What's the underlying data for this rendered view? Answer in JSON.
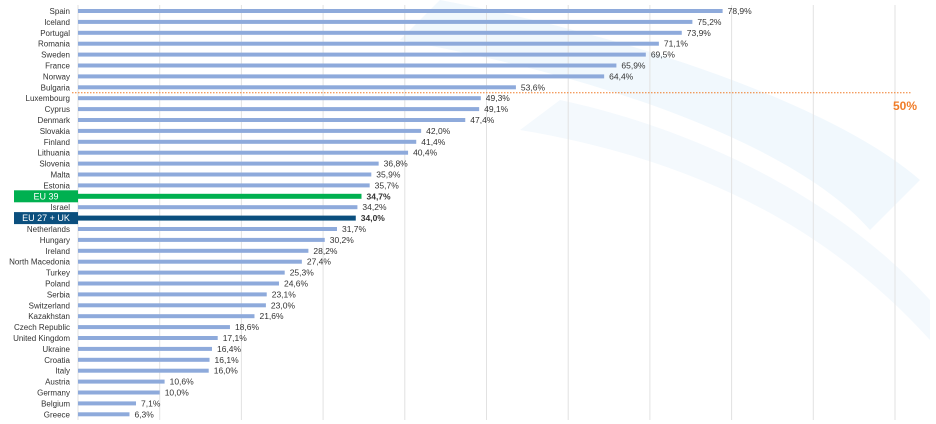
{
  "chart_data": {
    "type": "bar",
    "orientation": "horizontal",
    "categories": [
      "Spain",
      "Iceland",
      "Portugal",
      "Romania",
      "Sweden",
      "France",
      "Norway",
      "Bulgaria",
      "Luxembourg",
      "Cyprus",
      "Denmark",
      "Slovakia",
      "Finland",
      "Lithuania",
      "Slovenia",
      "Malta",
      "Estonia",
      "EU 39",
      "Israel",
      "EU 27 + UK",
      "Netherlands",
      "Hungary",
      "Ireland",
      "North Macedonia",
      "Turkey",
      "Poland",
      "Serbia",
      "Switzerland",
      "Kazakhstan",
      "Czech Republic",
      "United Kingdom",
      "Ukraine",
      "Croatia",
      "Italy",
      "Austria",
      "Germany",
      "Belgium",
      "Greece"
    ],
    "values": [
      78.9,
      75.2,
      73.9,
      71.1,
      69.5,
      65.9,
      64.4,
      53.6,
      49.3,
      49.1,
      47.4,
      42.0,
      41.4,
      40.4,
      36.8,
      35.9,
      35.7,
      34.7,
      34.2,
      34.0,
      31.7,
      30.2,
      28.2,
      27.4,
      25.3,
      24.6,
      23.1,
      23.0,
      21.6,
      18.6,
      17.1,
      16.4,
      16.1,
      16.0,
      10.6,
      10.0,
      7.1,
      6.3
    ],
    "value_labels": [
      "78,9%",
      "75,2%",
      "73,9%",
      "71,1%",
      "69,5%",
      "65,9%",
      "64,4%",
      "53,6%",
      "49,3%",
      "49,1%",
      "47,4%",
      "42,0%",
      "41,4%",
      "40,4%",
      "36,8%",
      "35,9%",
      "35,7%",
      "34,7%",
      "34,2%",
      "34,0%",
      "31,7%",
      "30,2%",
      "28,2%",
      "27,4%",
      "25,3%",
      "24,6%",
      "23,1%",
      "23,0%",
      "21,6%",
      "18,6%",
      "17,1%",
      "16,4%",
      "16,1%",
      "16,0%",
      "10,6%",
      "10,0%",
      "7,1%",
      "6,3%"
    ],
    "highlighted": {
      "EU 39": "#00b050",
      "EU 27 + UK": "#0b4f7e"
    },
    "highlight_value_colors": {
      "EU 39": "#00a94f",
      "EU 27 + UK": "#1a6ea8"
    },
    "bar_color": "#8eaadb",
    "xlim": [
      0,
      100
    ],
    "grid": true,
    "reference_line": {
      "after": "Bulgaria",
      "label": "50%",
      "color": "#f07c28"
    }
  }
}
